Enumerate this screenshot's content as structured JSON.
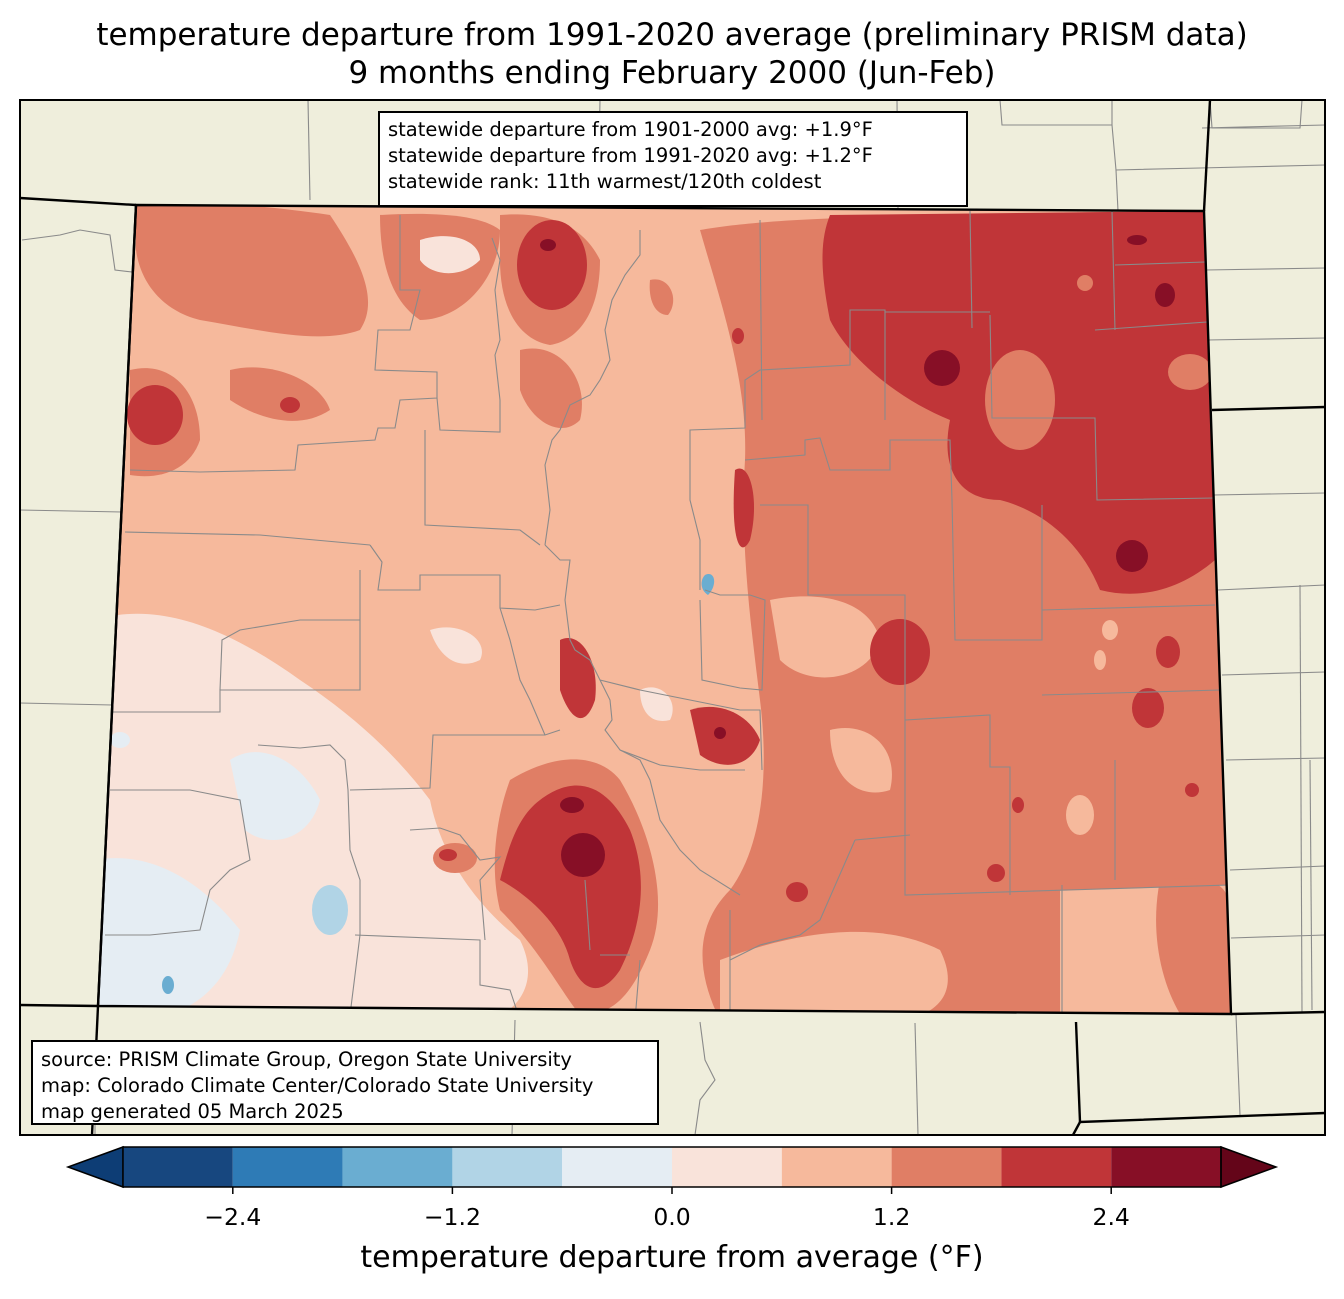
{
  "title": {
    "line1": "temperature departure from 1991-2020 average (preliminary PRISM data)",
    "line2": "9 months ending February 2000 (Jun-Feb)"
  },
  "stats_box": {
    "line1": "statewide departure from 1901-2000 avg: +1.9°F",
    "line2": "statewide departure from 1991-2020 avg: +1.2°F",
    "line3": "statewide rank: 11th warmest/120th coldest"
  },
  "credits_box": {
    "line1": "source: PRISM Climate Group, Oregon State University",
    "line2": "map: Colorado Climate Center/Colorado State University",
    "line3": "map generated 05 March 2025"
  },
  "colorbar": {
    "label": "temperature departure from average (°F)",
    "ticks": [
      "−2.4",
      "−1.2",
      "0.0",
      "1.2",
      "2.4"
    ],
    "tick_values": [
      -2.4,
      -1.2,
      0.0,
      1.2,
      2.4
    ],
    "bounds": [
      -3.0,
      -2.4,
      -1.8,
      -1.2,
      -0.6,
      0.0,
      0.6,
      1.2,
      1.8,
      2.4,
      3.0
    ],
    "colors": [
      "#0d3d75",
      "#17477f",
      "#2e7bb6",
      "#6aadd1",
      "#b1d4e6",
      "#e5edf3",
      "#f9e3da",
      "#f6b99c",
      "#e07e65",
      "#c03538",
      "#870f26",
      "#640519"
    ]
  },
  "palette": {
    "land_background": "#efeedc",
    "county_lines": "#8a8a8a",
    "state_lines": "#000000"
  }
}
